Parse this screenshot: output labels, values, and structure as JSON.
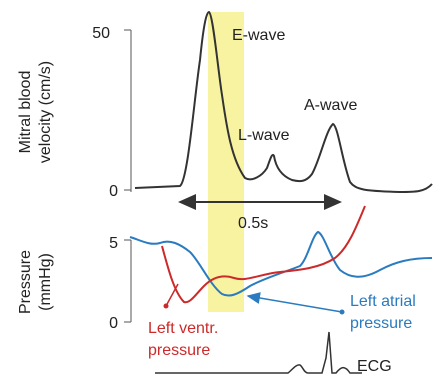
{
  "top_panel": {
    "y_axis_label": [
      "Mitral blood",
      "velocity (cm/s)"
    ],
    "ticks": [
      "50",
      "0"
    ],
    "annotations": {
      "e_wave": "E-wave",
      "l_wave": "L-wave",
      "a_wave": "A-wave",
      "interval": "0.5s"
    }
  },
  "bottom_panel": {
    "y_axis_label": [
      "Pressure",
      "(mmHg)"
    ],
    "ticks": [
      "5",
      "0"
    ],
    "annotations": {
      "left_ventricular": [
        "Left ventr.",
        "pressure"
      ],
      "left_atrial": [
        "Left atrial",
        "pressure"
      ],
      "ecg": "ECG"
    }
  }
}
